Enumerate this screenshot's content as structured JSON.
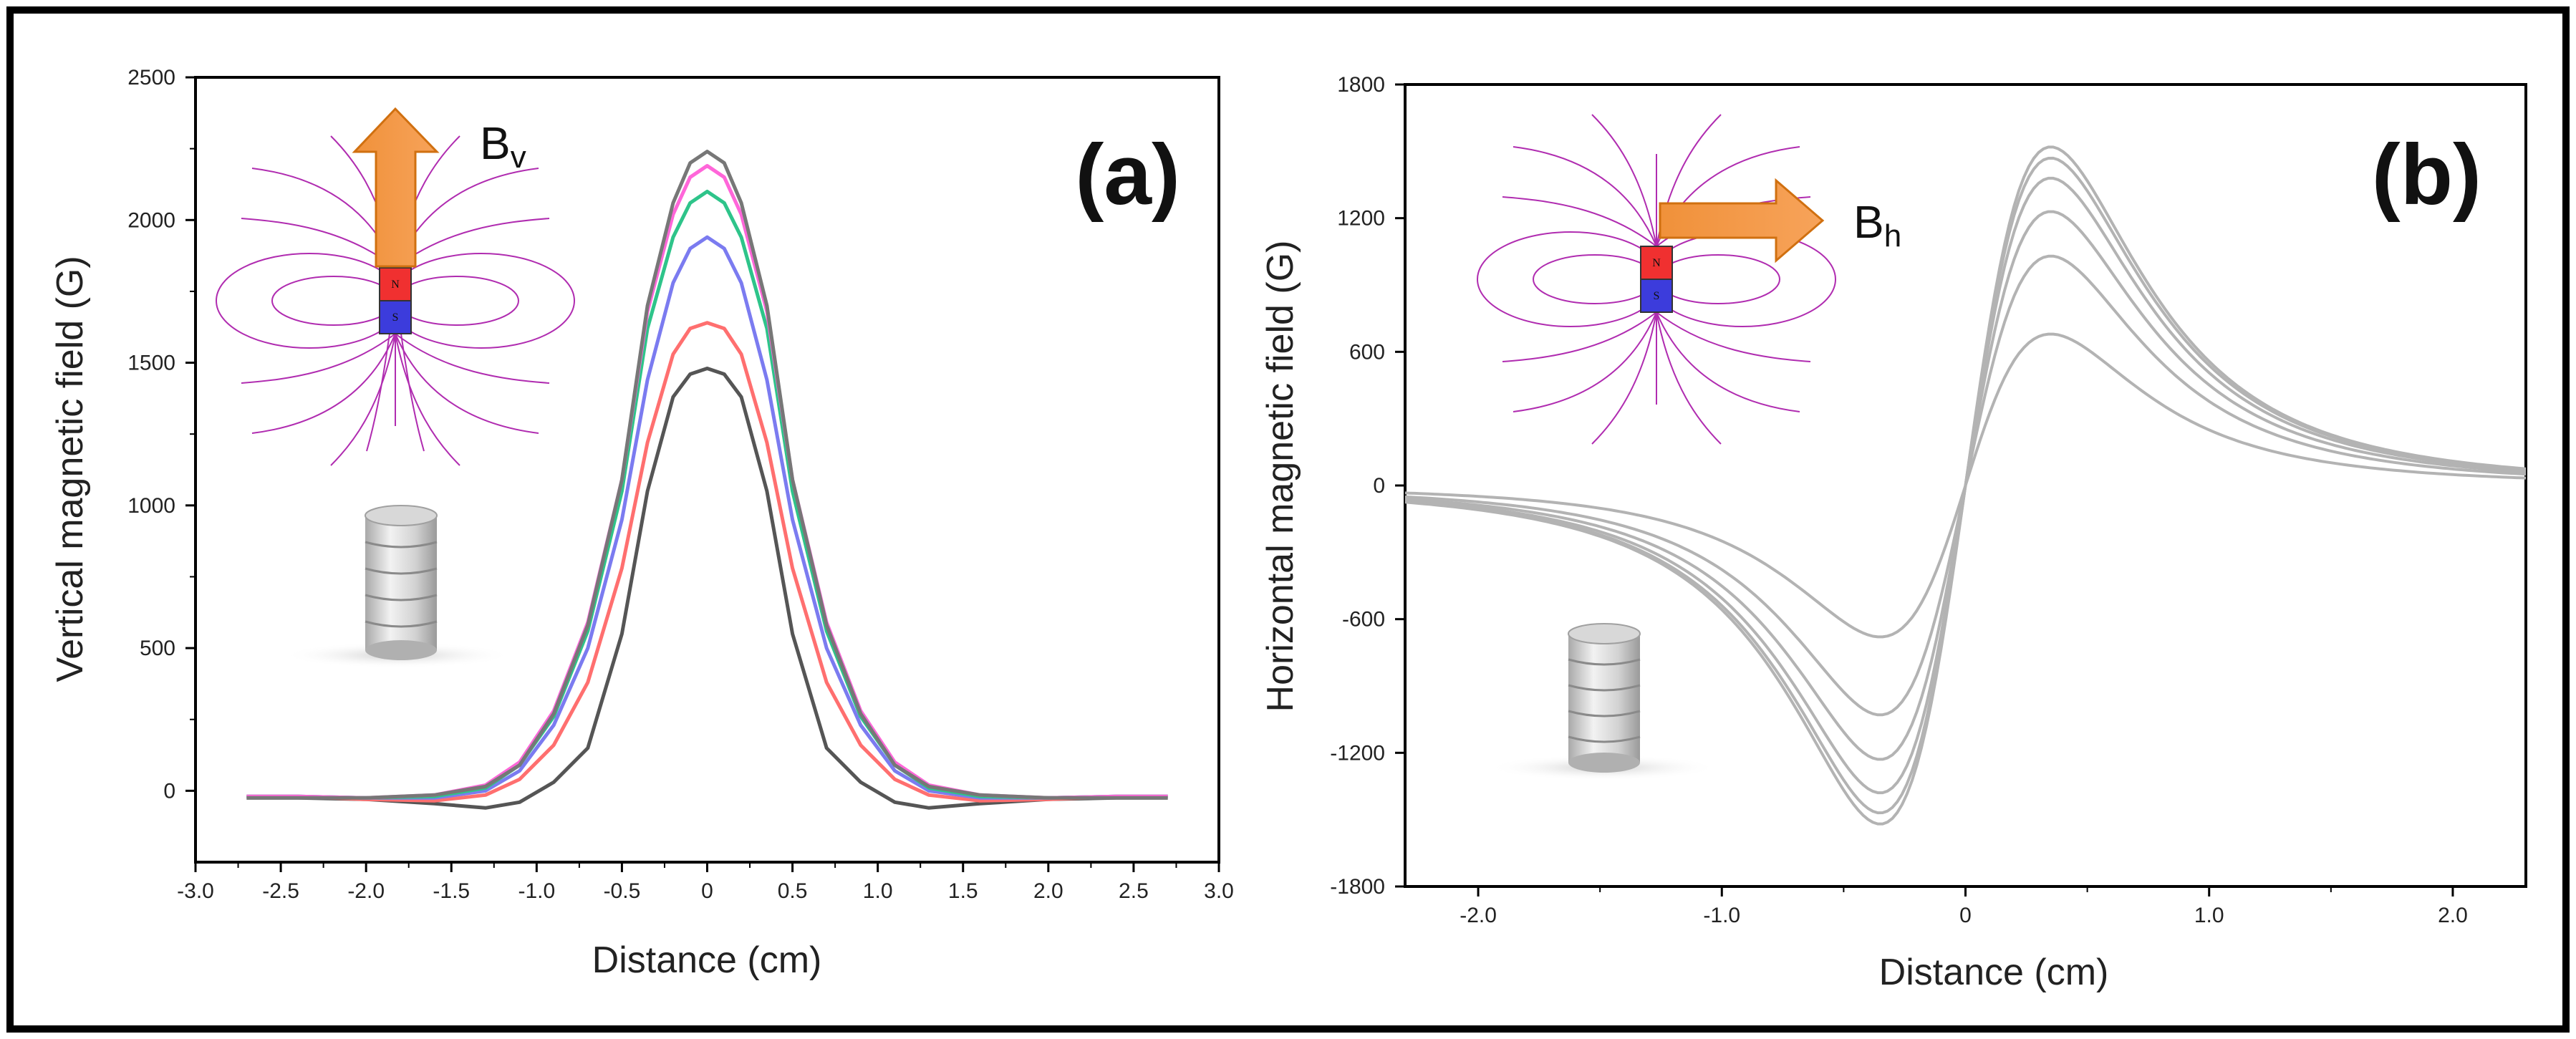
{
  "chart_data": [
    {
      "panel": "a",
      "type": "line",
      "panel_label": "(a)",
      "xlabel": "Distance (cm)",
      "ylabel": "Vertical magnetic field (G)",
      "xlim": [
        -3.0,
        3.0
      ],
      "ylim": [
        -250,
        2500
      ],
      "xticks": [
        "-3.0",
        "-2.5",
        "-2.0",
        "-1.5",
        "-1.0",
        "-0.5",
        "0",
        "0.5",
        "1.0",
        "1.5",
        "2.0",
        "2.5",
        "3.0"
      ],
      "yticks": [
        "0",
        "500",
        "1000",
        "1500",
        "2000",
        "2500"
      ],
      "inset_label": "B",
      "inset_subscript": "v",
      "magnet_poles": [
        "N",
        "S"
      ],
      "x": [
        -2.7,
        -2.4,
        -2.0,
        -1.6,
        -1.3,
        -1.1,
        -0.9,
        -0.7,
        -0.5,
        -0.35,
        -0.2,
        -0.1,
        0,
        0.1,
        0.2,
        0.35,
        0.5,
        0.7,
        0.9,
        1.1,
        1.3,
        1.6,
        2.0,
        2.4,
        2.7
      ],
      "series": [
        {
          "name": "dark gray",
          "color": "#555555",
          "values": [
            -25,
            -25,
            -30,
            -45,
            -60,
            -40,
            30,
            150,
            550,
            1050,
            1380,
            1460,
            1480,
            1460,
            1380,
            1050,
            550,
            150,
            30,
            -40,
            -60,
            -45,
            -30,
            -25,
            -25
          ]
        },
        {
          "name": "red",
          "color": "#ff6f6f",
          "values": [
            -20,
            -20,
            -30,
            -35,
            -15,
            40,
            160,
            380,
            780,
            1220,
            1530,
            1620,
            1640,
            1620,
            1530,
            1220,
            780,
            380,
            160,
            40,
            -15,
            -35,
            -30,
            -20,
            -20
          ]
        },
        {
          "name": "blue",
          "color": "#7b7bf0",
          "values": [
            -20,
            -20,
            -25,
            -25,
            0,
            70,
            230,
            500,
            950,
            1440,
            1780,
            1900,
            1940,
            1900,
            1780,
            1440,
            950,
            500,
            230,
            70,
            0,
            -25,
            -25,
            -20,
            -20
          ]
        },
        {
          "name": "green",
          "color": "#2ec48a",
          "values": [
            -20,
            -20,
            -25,
            -20,
            10,
            90,
            260,
            560,
            1050,
            1620,
            1940,
            2060,
            2100,
            2060,
            1940,
            1620,
            1050,
            560,
            260,
            90,
            10,
            -20,
            -25,
            -20,
            -20
          ]
        },
        {
          "name": "pink",
          "color": "#ff66d9",
          "values": [
            -20,
            -20,
            -25,
            -15,
            20,
            100,
            280,
            590,
            1090,
            1680,
            2020,
            2150,
            2190,
            2150,
            2020,
            1680,
            1090,
            590,
            280,
            100,
            20,
            -15,
            -25,
            -20,
            -20
          ]
        },
        {
          "name": "gray",
          "color": "#777777",
          "values": [
            -25,
            -25,
            -25,
            -15,
            15,
            90,
            270,
            580,
            1090,
            1700,
            2060,
            2200,
            2240,
            2200,
            2060,
            1700,
            1090,
            580,
            270,
            90,
            15,
            -15,
            -25,
            -25,
            -25
          ]
        }
      ]
    },
    {
      "panel": "b",
      "type": "line",
      "panel_label": "(b)",
      "xlabel": "Distance (cm)",
      "ylabel": "Horizontal magnetic field (G)",
      "xlim": [
        -2.3,
        2.3
      ],
      "ylim": [
        -1800,
        1800
      ],
      "xticks": [
        "-2.0",
        "-1.0",
        "0",
        "1.0",
        "2.0"
      ],
      "yticks": [
        "-1800",
        "-1200",
        "-600",
        "0",
        "600",
        "1200",
        "1800"
      ],
      "inset_label": "B",
      "inset_subscript": "h",
      "magnet_poles": [
        "N",
        "S"
      ],
      "peak_x": 0.35,
      "series": [
        {
          "name": "curve 1",
          "color": "#b3b3b3",
          "peak": 680
        },
        {
          "name": "curve 2",
          "color": "#b3b3b3",
          "peak": 1030
        },
        {
          "name": "curve 3",
          "color": "#b3b3b3",
          "peak": 1230
        },
        {
          "name": "curve 4",
          "color": "#b3b3b3",
          "peak": 1380
        },
        {
          "name": "curve 5",
          "color": "#b3b3b3",
          "peak": 1470
        },
        {
          "name": "curve 6",
          "color": "#b3b3b3",
          "peak": 1520
        }
      ]
    }
  ]
}
